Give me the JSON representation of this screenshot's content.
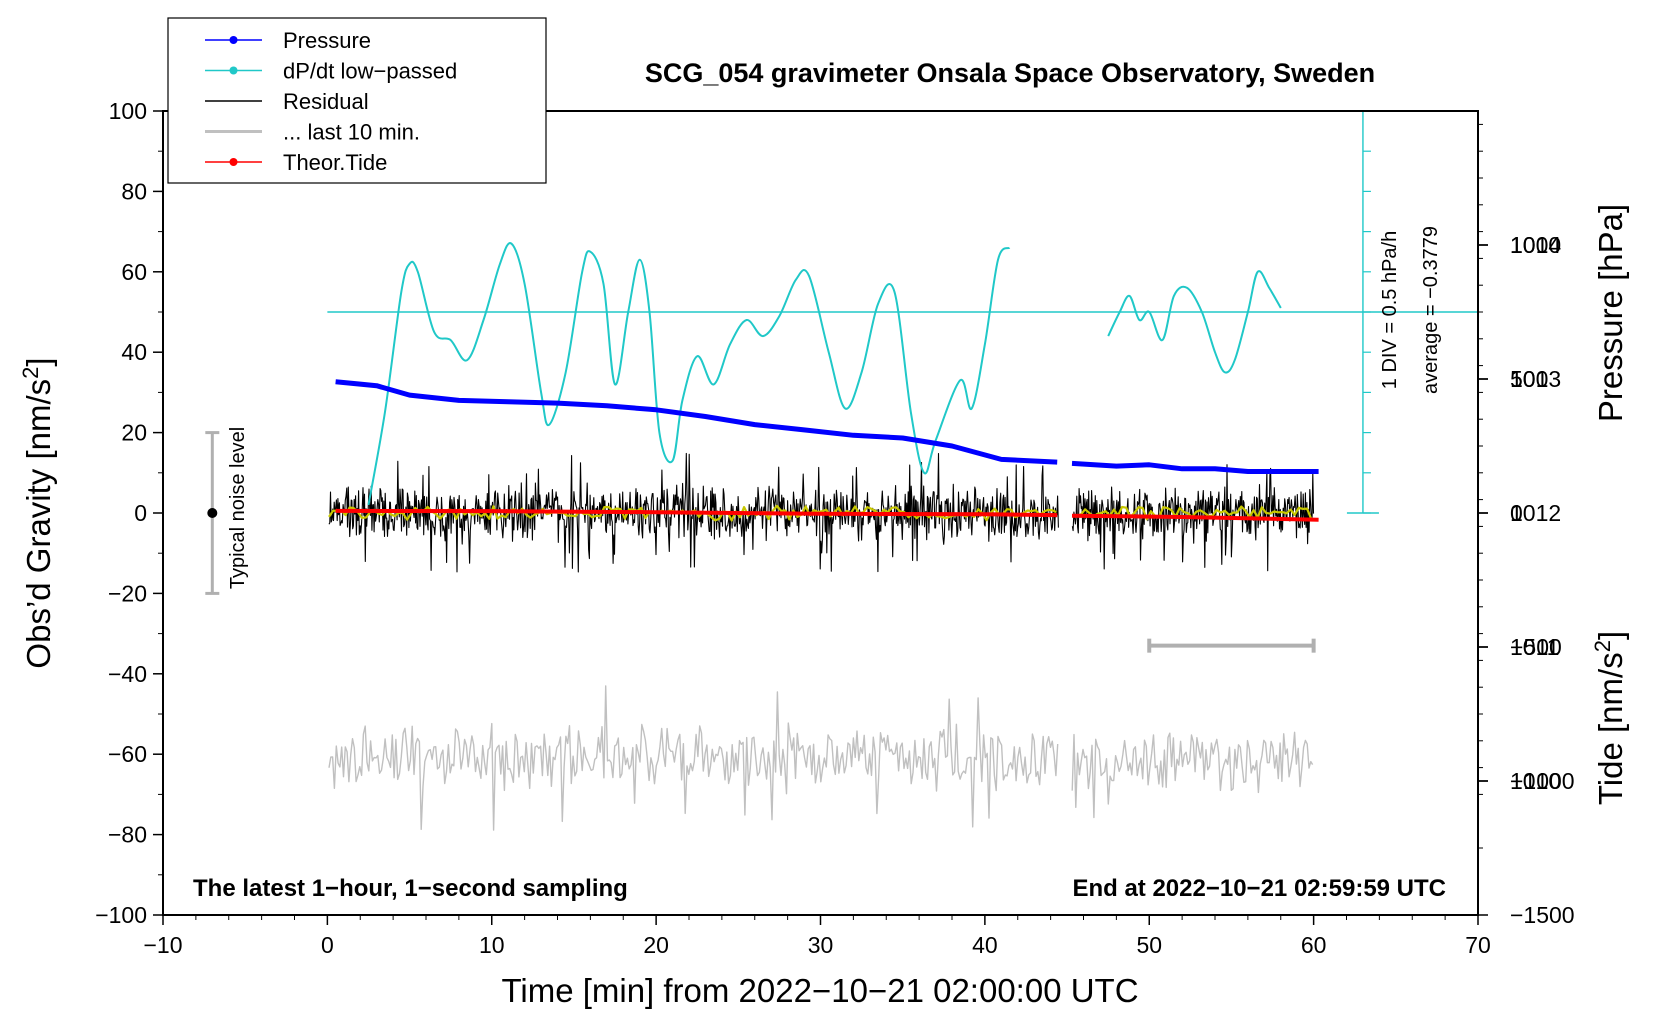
{
  "chart_data": {
    "type": "line",
    "title": "SCG_054 gravimeter Onsala Space Observatory, Sweden",
    "xlabel": "Time [min] from 2022−10−21 02:00:00 UTC",
    "ylabel_left_main": "Obs’d Gravity [nm/s",
    "ylabel_left_sup": "2",
    "ylabel_left_end": "]",
    "ylabel_right_pressure": "Pressure [hPa]",
    "ylabel_right_tide_main": "Tide [nm/s",
    "ylabel_right_tide_sup": "2",
    "ylabel_right_tide_end": "]",
    "xlim": [
      -10,
      70
    ],
    "ylim": [
      -100,
      100
    ],
    "pressure_lim": [
      1009,
      1015
    ],
    "tide_lim": [
      -1500,
      1500
    ],
    "x_ticks": [
      {
        "v": -10,
        "label": "−10"
      },
      {
        "v": 0,
        "label": "0"
      },
      {
        "v": 10,
        "label": "10"
      },
      {
        "v": 20,
        "label": "20"
      },
      {
        "v": 30,
        "label": "30"
      },
      {
        "v": 40,
        "label": "40"
      },
      {
        "v": 50,
        "label": "50"
      },
      {
        "v": 60,
        "label": "60"
      },
      {
        "v": 70,
        "label": "70"
      }
    ],
    "y_ticks": [
      {
        "v": 100,
        "label": "100"
      },
      {
        "v": 80,
        "label": "80"
      },
      {
        "v": 60,
        "label": "60"
      },
      {
        "v": 40,
        "label": "40"
      },
      {
        "v": 20,
        "label": "20"
      },
      {
        "v": 0,
        "label": "0"
      },
      {
        "v": -20,
        "label": "−20"
      },
      {
        "v": -40,
        "label": "−40"
      },
      {
        "v": -60,
        "label": "−60"
      },
      {
        "v": -80,
        "label": "−80"
      },
      {
        "v": -100,
        "label": "−100"
      }
    ],
    "pressure_ticks": [
      {
        "v": 1014,
        "label": "1014"
      },
      {
        "v": 1013,
        "label": "1013"
      },
      {
        "v": 1012,
        "label": "1012"
      },
      {
        "v": 1011,
        "label": "1011"
      },
      {
        "v": 1010,
        "label": "1010"
      }
    ],
    "tide_ticks": [
      {
        "v": 1000,
        "label": "1000"
      },
      {
        "v": 500,
        "label": "500"
      },
      {
        "v": 0,
        "label": "0"
      },
      {
        "v": -500,
        "label": "−500"
      },
      {
        "v": -1000,
        "label": "−1000"
      },
      {
        "v": -1500,
        "label": "−1500"
      }
    ],
    "legend": [
      {
        "label": "Pressure",
        "color": "#0000ff",
        "marker": true
      },
      {
        "label": "dP/dt low−passed",
        "color": "#20c8c8",
        "marker": true
      },
      {
        "label": "Residual",
        "color": "#000000",
        "marker": false
      },
      {
        "label": "... last 10 min.",
        "color": "#c0c0c0",
        "marker": false
      },
      {
        "label": "Theor.Tide",
        "color": "#ff0000",
        "marker": true
      }
    ],
    "annotations": {
      "bottom_left": "The latest 1−hour, 1−second sampling",
      "bottom_right": "End at 2022−10−21 02:59:59 UTC",
      "noise_label": "Typical noise level",
      "dpdt_scale": "1 DIV = 0.5 hPa/h",
      "dpdt_average": "average = −0.3779"
    },
    "noise_bar": {
      "x": -7,
      "ymin": -20,
      "ymax": 20,
      "center": 0
    },
    "last10_bar": {
      "xmin": 50,
      "xmax": 60,
      "y": -33
    },
    "dpdt_axis": {
      "x": 63,
      "ymin": 0,
      "ymax": 100,
      "zero_line_y": 50
    },
    "gap": [
      44.5,
      45.3
    ],
    "series": [
      {
        "name": "Pressure",
        "axis": "pressure",
        "color": "#0000ff",
        "x": [
          0.5,
          3,
          5,
          8,
          11,
          14,
          17,
          20,
          23,
          26,
          29,
          32,
          35,
          38,
          41,
          44.4,
          45.3,
          48,
          50,
          52,
          54,
          56,
          58,
          60.3
        ],
        "values": [
          1012.98,
          1012.95,
          1012.88,
          1012.84,
          1012.83,
          1012.82,
          1012.8,
          1012.77,
          1012.72,
          1012.66,
          1012.62,
          1012.58,
          1012.56,
          1012.5,
          1012.4,
          1012.38,
          1012.37,
          1012.35,
          1012.36,
          1012.33,
          1012.33,
          1012.31,
          1012.31,
          1012.31
        ]
      },
      {
        "name": "dP/dt low-passed",
        "axis": "left",
        "color": "#20c8c8",
        "x": [
          2.5,
          3.5,
          4.5,
          5,
          5.5,
          6.5,
          7.5,
          8.5,
          9.5,
          10.5,
          11.2,
          12,
          13,
          13.5,
          14.5,
          15.5,
          16,
          16.8,
          17.5,
          18.3,
          19,
          19.6,
          20.2,
          21,
          21.6,
          22.5,
          23.5,
          24.5,
          25.5,
          26.5,
          27.5,
          28.5,
          29.3,
          30.5,
          31.5,
          32.5,
          33.5,
          34.5,
          35.5,
          36.3,
          37,
          38.5,
          39.2,
          40,
          40.8,
          41.5
        ],
        "values": [
          2,
          25,
          55,
          62,
          60,
          45,
          43,
          38,
          48,
          62,
          67,
          57,
          30,
          22,
          35,
          60,
          65,
          57,
          32,
          50,
          63,
          50,
          20,
          13,
          28,
          39,
          32,
          42,
          48,
          44,
          49,
          58,
          59,
          40,
          26,
          35,
          52,
          55,
          25,
          10,
          18,
          33,
          26,
          42,
          63,
          66
        ]
      },
      {
        "name": "dP/dt low-passed (after gap)",
        "axis": "left",
        "color": "#20c8c8",
        "x": [
          47.5,
          48.2,
          48.8,
          49.4,
          50,
          50.8,
          51.5,
          52.3,
          53.2,
          54,
          54.6,
          55.2,
          56,
          56.6,
          57.3,
          58
        ],
        "values": [
          44,
          50,
          54,
          48,
          50,
          43,
          54,
          56,
          50,
          40,
          35,
          38,
          50,
          60,
          56,
          51
        ]
      },
      {
        "name": "Residual",
        "axis": "left",
        "color": "#000000",
        "amp": 8,
        "spikes": 15,
        "x_range": [
          0,
          60
        ],
        "center": 0
      },
      {
        "name": "Residual smoothed",
        "axis": "left",
        "color": "#c8c800",
        "amp": 2,
        "x_range": [
          0,
          60
        ],
        "center": 0
      },
      {
        "name": "... last 10 min.",
        "axis": "left",
        "color": "#c0c0c0",
        "amp": 9,
        "spikes": 18,
        "x_range": [
          0,
          60
        ],
        "center": -61
      },
      {
        "name": "Theor.Tide",
        "axis": "tide",
        "color": "#ff0000",
        "x": [
          0.5,
          10,
          20,
          30,
          40,
          44.4,
          45.3,
          52,
          60.3
        ],
        "values": [
          8,
          7,
          3,
          -3,
          -5,
          -8,
          -10,
          -15,
          -25
        ]
      }
    ]
  }
}
